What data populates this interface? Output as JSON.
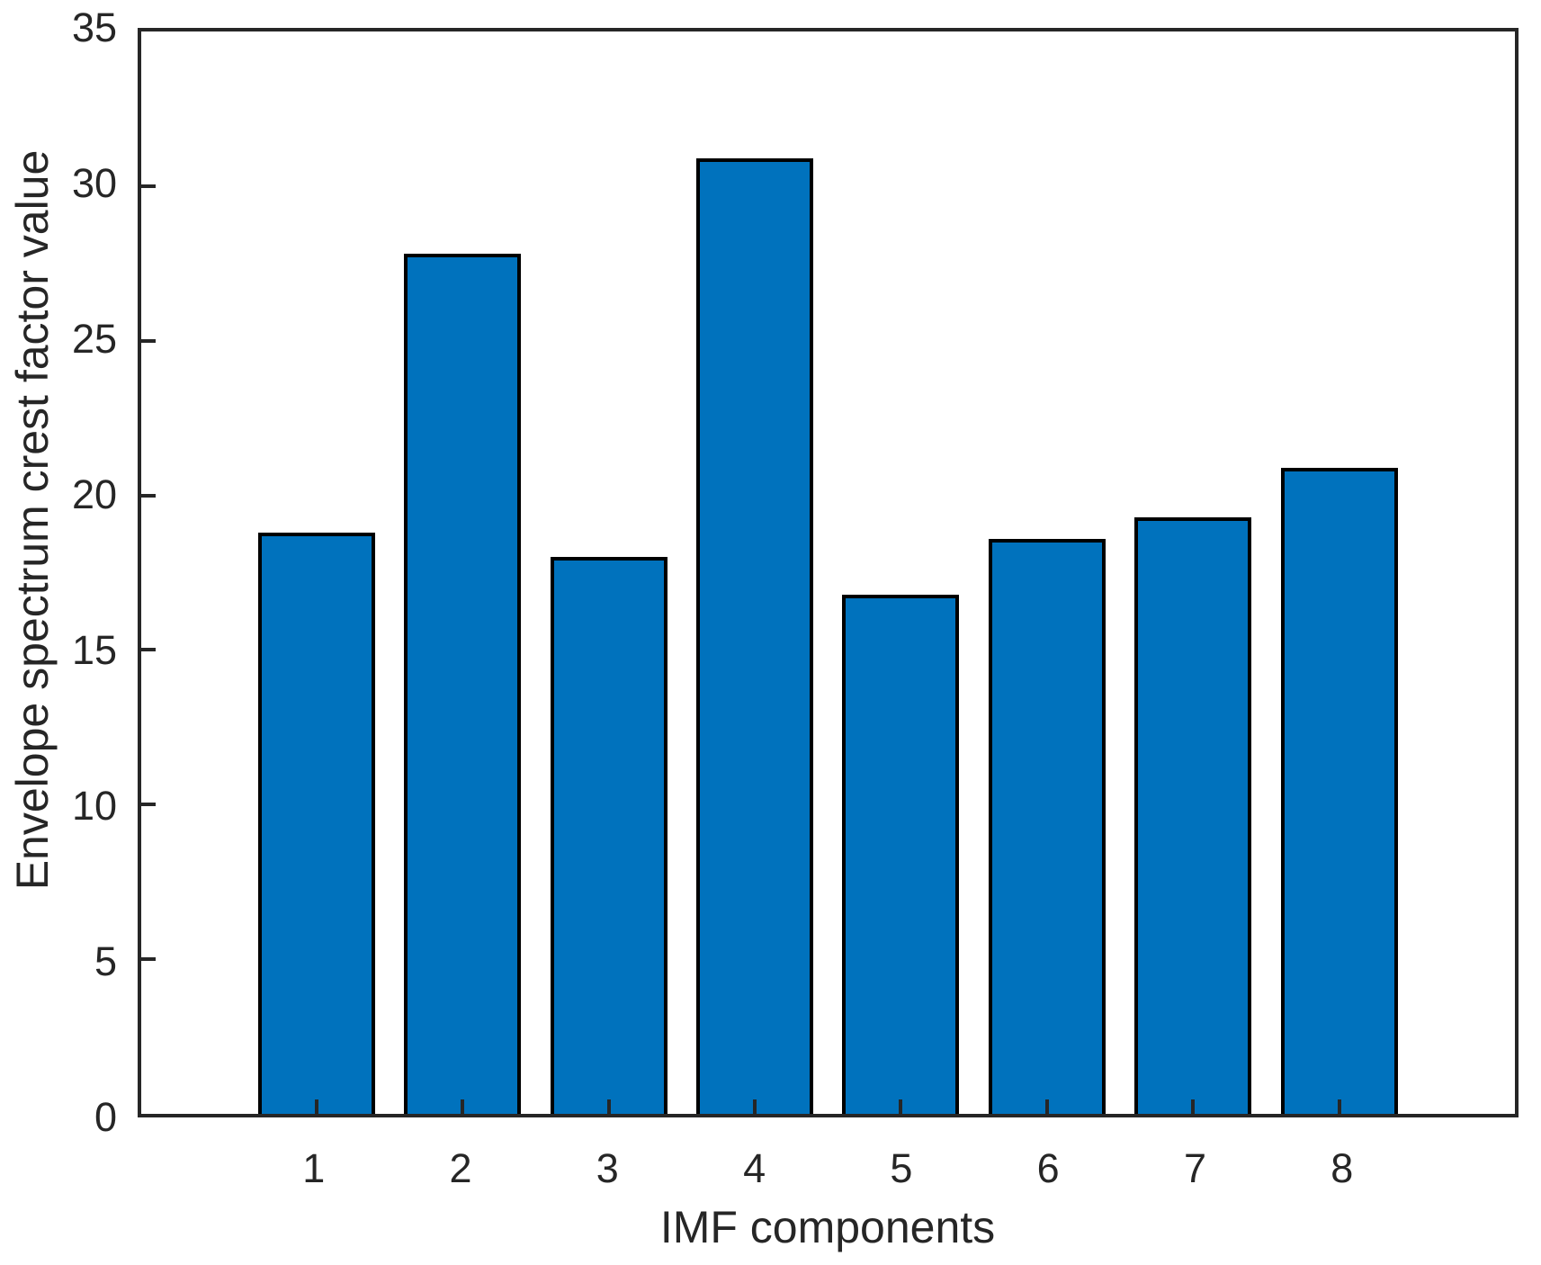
{
  "chart_data": {
    "type": "bar",
    "title": "",
    "xlabel": "IMF components",
    "ylabel": "Envelope spectrum crest factor value",
    "categories": [
      "1",
      "2",
      "3",
      "4",
      "5",
      "6",
      "7",
      "8"
    ],
    "values": [
      18.8,
      27.8,
      18.0,
      30.9,
      16.8,
      18.6,
      19.3,
      20.9
    ],
    "ylim": [
      0,
      35
    ],
    "yticks": [
      0,
      5,
      10,
      15,
      20,
      25,
      30,
      35
    ],
    "grid": false,
    "legend": null,
    "bar_fill_color": "#0072BD",
    "bar_edge_color": "#000000",
    "axis_color": "#262626"
  }
}
